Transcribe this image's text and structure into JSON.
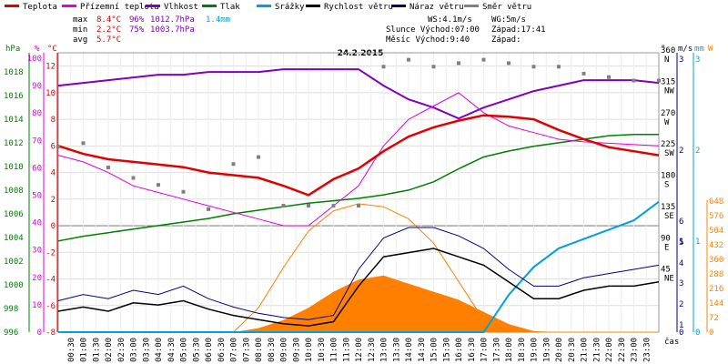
{
  "chart_data": {
    "type": "line",
    "title": "24.2.2015",
    "legend": [
      {
        "name": "Teplota",
        "color": "#e00000"
      },
      {
        "name": "Přízemní teplota",
        "color": "#e000e0"
      },
      {
        "name": "Vlhkost",
        "color": "#8000c0"
      },
      {
        "name": "Tlak",
        "color": "#008000"
      },
      {
        "name": "Srážky",
        "color": "#00a0e0"
      },
      {
        "name": "Rychlost větru",
        "color": "#000000"
      },
      {
        "name": "Náraz větru",
        "color": "#000080"
      },
      {
        "name": "Směr větru",
        "color": "#808080"
      }
    ],
    "stats": {
      "max": {
        "label": "max",
        "temp": "8.4°C",
        "humidity": "96%",
        "pressure": "1012.7hPa",
        "rain": "1.4mm"
      },
      "min": {
        "label": "min",
        "temp": "2.2°C",
        "humidity": "75%",
        "pressure": "1003.7hPa"
      },
      "avg": {
        "label": "avg",
        "temp": "5.7°C"
      }
    },
    "info": {
      "ws": "WS:4.1m/s",
      "wg": "WG:5m/s",
      "sun_rise": "Slunce Východ:07:00",
      "sun_set": "Západ:17:41",
      "moon_rise": "Měsíc Východ:9:40",
      "moon_set": "Západ:"
    },
    "axes": {
      "hpa": {
        "label": "hPa",
        "ticks": [
          "1018",
          "1016",
          "1014",
          "1012",
          "1010",
          "1008",
          "1006",
          "1004",
          "1002",
          "1000",
          "998",
          "996"
        ]
      },
      "pct": {
        "label": "%",
        "ticks": [
          "100",
          "90",
          "80",
          "70",
          "60",
          "50",
          "40",
          "30",
          "20",
          "10",
          "0"
        ]
      },
      "degc": {
        "label": "°C",
        "ticks": [
          "12",
          "10",
          "8",
          "6",
          "4",
          "2",
          "0",
          "-2",
          "-4",
          "-6",
          "-8"
        ]
      },
      "dir": {
        "label": "°",
        "ticks": [
          "360",
          "315",
          "270",
          "225",
          "180",
          "135",
          "90",
          "45"
        ],
        "compass": [
          "N",
          "NW",
          "W",
          "SW",
          "S",
          "SE",
          "E",
          "NE"
        ]
      },
      "ms": {
        "label": "m/s",
        "ticks": [
          "3",
          "2",
          "1",
          "6",
          "5",
          "4",
          "3",
          "2",
          "1",
          "0"
        ]
      },
      "mm": {
        "label": "mm",
        "ticks": [
          "3",
          "2",
          "1",
          "0"
        ]
      },
      "w": {
        "label": "W",
        "ticks": [
          "648",
          "576",
          "504",
          "432",
          "360",
          "288",
          "216",
          "144",
          "72",
          "0"
        ]
      },
      "xlabel": "čas",
      "x_ticks": [
        "00:30",
        "01:00",
        "01:30",
        "02:00",
        "02:30",
        "03:00",
        "03:30",
        "04:00",
        "04:30",
        "05:00",
        "05:30",
        "06:00",
        "06:30",
        "07:00",
        "07:30",
        "08:00",
        "08:30",
        "09:00",
        "09:30",
        "10:00",
        "10:30",
        "11:00",
        "11:30",
        "12:00",
        "12:30",
        "13:00",
        "13:30",
        "14:00",
        "14:30",
        "15:00",
        "15:30",
        "16:00",
        "16:30",
        "17:00",
        "17:30",
        "18:00",
        "18:30",
        "19:00",
        "19:30",
        "20:00",
        "20:30",
        "21:00",
        "21:30",
        "22:00",
        "22:30",
        "23:00",
        "23:30"
      ]
    },
    "series": {
      "x_hours": [
        0,
        1,
        2,
        3,
        4,
        5,
        6,
        7,
        8,
        9,
        10,
        11,
        12,
        13,
        14,
        15,
        16,
        17,
        18,
        19,
        20,
        21,
        22,
        23,
        24
      ],
      "temperature": [
        6.0,
        5.4,
        5.0,
        4.8,
        4.6,
        4.4,
        4.0,
        3.8,
        3.6,
        3.0,
        2.3,
        3.5,
        4.3,
        5.6,
        6.7,
        7.4,
        7.9,
        8.3,
        8.2,
        8.0,
        7.2,
        6.5,
        5.9,
        5.6,
        5.3
      ],
      "ground_temperature": [
        5.3,
        4.8,
        4.0,
        3.0,
        2.5,
        2.0,
        1.5,
        1.0,
        0.5,
        0.0,
        0.0,
        1.5,
        3.0,
        6.0,
        8.0,
        9.0,
        10.0,
        8.5,
        7.5,
        7.0,
        6.5,
        6.3,
        6.2,
        6.1,
        6.0
      ],
      "humidity": [
        90,
        91,
        92,
        93,
        94,
        94,
        95,
        95,
        95,
        96,
        96,
        96,
        96,
        90,
        85,
        82,
        78,
        82,
        85,
        88,
        90,
        92,
        92,
        92,
        91
      ],
      "pressure": [
        1003.7,
        1004.1,
        1004.4,
        1004.7,
        1005.0,
        1005.3,
        1005.6,
        1006.0,
        1006.3,
        1006.6,
        1006.9,
        1007.1,
        1007.3,
        1007.6,
        1008.0,
        1008.7,
        1009.8,
        1010.8,
        1011.3,
        1011.7,
        1012.0,
        1012.3,
        1012.6,
        1012.7,
        1012.7
      ],
      "rain_cumulative_mm": [
        0,
        0,
        0,
        0,
        0,
        0,
        0,
        0,
        0,
        0,
        0,
        0,
        0,
        0,
        0,
        0,
        0,
        0,
        0.4,
        0.7,
        0.9,
        1.0,
        1.1,
        1.2,
        1.4
      ],
      "wind_direction": [
        225,
        230,
        195,
        180,
        170,
        160,
        135,
        200,
        210,
        140,
        140,
        140,
        140,
        340,
        350,
        340,
        345,
        350,
        345,
        340,
        340,
        330,
        325,
        320,
        320
      ],
      "wind_speed": [
        1.0,
        1.2,
        1.0,
        1.4,
        1.3,
        1.5,
        1.1,
        0.8,
        0.6,
        0.4,
        0.3,
        0.5,
        2.2,
        3.6,
        3.8,
        4.0,
        3.6,
        3.2,
        2.4,
        1.6,
        1.6,
        2.0,
        2.2,
        2.2,
        2.4
      ],
      "wind_gust": [
        1.5,
        1.8,
        1.6,
        2.0,
        1.8,
        2.2,
        1.6,
        1.2,
        0.9,
        0.7,
        0.6,
        0.8,
        3.0,
        4.5,
        5.0,
        5.0,
        4.6,
        4.0,
        3.0,
        2.2,
        2.2,
        2.6,
        2.8,
        3.0,
        3.2
      ],
      "solar_radiation_w": [
        0,
        0,
        0,
        0,
        0,
        0,
        0,
        0,
        20,
        60,
        120,
        200,
        260,
        280,
        240,
        200,
        160,
        100,
        40,
        5,
        0,
        0,
        0,
        0,
        0
      ],
      "sun_theoretical_w": [
        0,
        0,
        0,
        0,
        0,
        0,
        0,
        0,
        120,
        320,
        500,
        600,
        635,
        620,
        560,
        440,
        250,
        60,
        0,
        0,
        0,
        0,
        0,
        0,
        0
      ]
    }
  }
}
